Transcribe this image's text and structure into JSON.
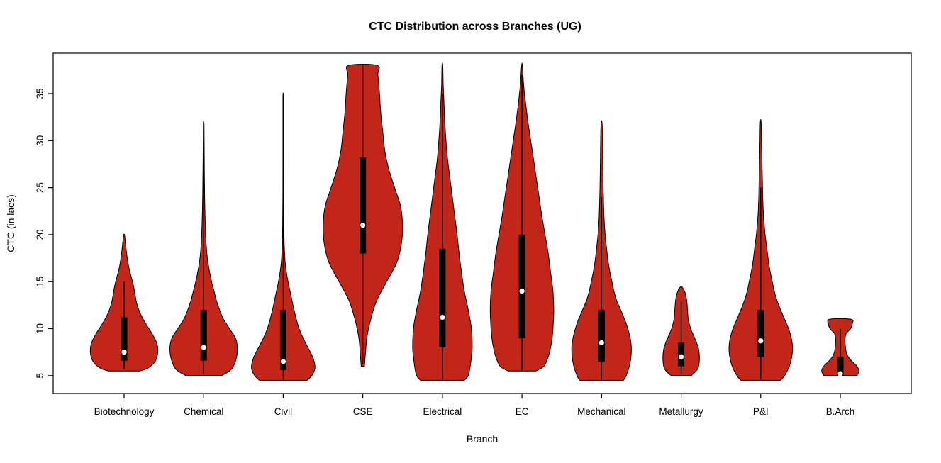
{
  "chart_data": {
    "type": "violin",
    "title": "CTC Distribution across Branches (UG)",
    "xlabel": "Branch",
    "ylabel": "CTC (in lacs)",
    "ylim": [
      3.1,
      39.3
    ],
    "yticks": [
      5,
      10,
      15,
      20,
      25,
      30,
      35
    ],
    "grid": false,
    "legend": "none",
    "violin_fill_color": "#C22618",
    "violin_outline_color": "#000000",
    "box_color": "#000000",
    "median_dot_color": "#ffffff",
    "categories": [
      "Biotechnology",
      "Chemical",
      "Civil",
      "CSE",
      "Electrical",
      "EC",
      "Mechanical",
      "Metallurgy",
      "P&I",
      "B.Arch"
    ],
    "series": [
      {
        "name": "Biotechnology",
        "min": 5.5,
        "max": 20,
        "q1": 6.6,
        "q3": 11.2,
        "median": 7.5,
        "whisker": [
          5.7,
          15
        ],
        "profile": [
          [
            5.5,
            0.4
          ],
          [
            5.8,
            0.6
          ],
          [
            6.5,
            0.78
          ],
          [
            7.5,
            0.85
          ],
          [
            8.5,
            0.82
          ],
          [
            9.5,
            0.7
          ],
          [
            10.5,
            0.55
          ],
          [
            11.5,
            0.42
          ],
          [
            12.5,
            0.33
          ],
          [
            13.5,
            0.28
          ],
          [
            14.5,
            0.24
          ],
          [
            15.5,
            0.18
          ],
          [
            16.5,
            0.12
          ],
          [
            17.5,
            0.08
          ],
          [
            18.5,
            0.05
          ],
          [
            19.5,
            0.025
          ],
          [
            20,
            0.01
          ]
        ]
      },
      {
        "name": "Chemical",
        "min": 5,
        "max": 32,
        "q1": 6.6,
        "q3": 12,
        "median": 8,
        "whisker": [
          5.2,
          29
        ],
        "profile": [
          [
            5,
            0.45
          ],
          [
            5.5,
            0.65
          ],
          [
            6,
            0.75
          ],
          [
            7,
            0.83
          ],
          [
            8,
            0.85
          ],
          [
            9,
            0.8
          ],
          [
            10,
            0.65
          ],
          [
            11,
            0.5
          ],
          [
            12,
            0.4
          ],
          [
            13,
            0.32
          ],
          [
            14,
            0.26
          ],
          [
            15,
            0.2
          ],
          [
            16,
            0.15
          ],
          [
            17,
            0.11
          ],
          [
            18,
            0.08
          ],
          [
            20,
            0.05
          ],
          [
            22,
            0.035
          ],
          [
            24,
            0.025
          ],
          [
            26,
            0.02
          ],
          [
            28,
            0.015
          ],
          [
            30,
            0.012
          ],
          [
            31.5,
            0.01
          ],
          [
            32,
            0.005
          ]
        ]
      },
      {
        "name": "Civil",
        "min": 4.5,
        "max": 35,
        "q1": 5.6,
        "q3": 12,
        "median": 6.5,
        "whisker": [
          4.6,
          29
        ],
        "profile": [
          [
            4.5,
            0.6
          ],
          [
            5,
            0.72
          ],
          [
            5.5,
            0.78
          ],
          [
            6,
            0.8
          ],
          [
            7,
            0.74
          ],
          [
            8,
            0.62
          ],
          [
            9,
            0.5
          ],
          [
            10,
            0.4
          ],
          [
            11,
            0.33
          ],
          [
            12,
            0.27
          ],
          [
            13,
            0.22
          ],
          [
            14,
            0.17
          ],
          [
            15,
            0.12
          ],
          [
            16,
            0.08
          ],
          [
            17,
            0.05
          ],
          [
            18,
            0.035
          ],
          [
            19,
            0.025
          ],
          [
            21,
            0.015
          ],
          [
            24,
            0.01
          ],
          [
            28,
            0.008
          ],
          [
            32,
            0.008
          ],
          [
            34.5,
            0.008
          ],
          [
            35,
            0.004
          ]
        ]
      },
      {
        "name": "CSE",
        "min": 6,
        "max": 38,
        "q1": 18,
        "q3": 28.2,
        "median": 21,
        "whisker": [
          6.2,
          38
        ],
        "profile": [
          [
            6,
            0.04
          ],
          [
            7,
            0.06
          ],
          [
            9,
            0.1
          ],
          [
            11,
            0.2
          ],
          [
            13,
            0.35
          ],
          [
            15,
            0.6
          ],
          [
            17,
            0.85
          ],
          [
            19,
            0.97
          ],
          [
            21,
            1.0
          ],
          [
            23,
            0.95
          ],
          [
            25,
            0.8
          ],
          [
            27,
            0.65
          ],
          [
            29,
            0.55
          ],
          [
            31,
            0.5
          ],
          [
            33,
            0.45
          ],
          [
            35,
            0.42
          ],
          [
            37,
            0.38
          ],
          [
            38,
            0.36
          ]
        ]
      },
      {
        "name": "Electrical",
        "min": 4.5,
        "max": 38,
        "q1": 8,
        "q3": 18.5,
        "median": 11.2,
        "whisker": [
          4.6,
          35
        ],
        "profile": [
          [
            4.5,
            0.55
          ],
          [
            5,
            0.65
          ],
          [
            6,
            0.7
          ],
          [
            7,
            0.73
          ],
          [
            8,
            0.75
          ],
          [
            10,
            0.73
          ],
          [
            12,
            0.65
          ],
          [
            14,
            0.55
          ],
          [
            16,
            0.48
          ],
          [
            18,
            0.42
          ],
          [
            20,
            0.37
          ],
          [
            22,
            0.31
          ],
          [
            24,
            0.25
          ],
          [
            26,
            0.19
          ],
          [
            28,
            0.13
          ],
          [
            30,
            0.09
          ],
          [
            32,
            0.06
          ],
          [
            34,
            0.04
          ],
          [
            36,
            0.02
          ],
          [
            38,
            0.01
          ]
        ]
      },
      {
        "name": "EC",
        "min": 5.5,
        "max": 38,
        "q1": 9,
        "q3": 20,
        "median": 14,
        "whisker": [
          5.6,
          37
        ],
        "profile": [
          [
            5.5,
            0.35
          ],
          [
            6,
            0.55
          ],
          [
            7,
            0.66
          ],
          [
            8,
            0.72
          ],
          [
            9,
            0.76
          ],
          [
            10,
            0.78
          ],
          [
            12,
            0.8
          ],
          [
            14,
            0.78
          ],
          [
            16,
            0.72
          ],
          [
            18,
            0.66
          ],
          [
            20,
            0.58
          ],
          [
            22,
            0.5
          ],
          [
            24,
            0.43
          ],
          [
            26,
            0.36
          ],
          [
            28,
            0.29
          ],
          [
            30,
            0.22
          ],
          [
            32,
            0.15
          ],
          [
            34,
            0.09
          ],
          [
            36,
            0.04
          ],
          [
            38,
            0.01
          ]
        ]
      },
      {
        "name": "Mechanical",
        "min": 4.5,
        "max": 32,
        "q1": 6.5,
        "q3": 12,
        "median": 8.5,
        "whisker": [
          4.6,
          24
        ],
        "profile": [
          [
            4.5,
            0.55
          ],
          [
            5,
            0.62
          ],
          [
            6,
            0.7
          ],
          [
            7,
            0.74
          ],
          [
            8,
            0.75
          ],
          [
            9,
            0.72
          ],
          [
            10,
            0.66
          ],
          [
            11,
            0.58
          ],
          [
            12,
            0.48
          ],
          [
            13,
            0.38
          ],
          [
            14,
            0.31
          ],
          [
            15,
            0.26
          ],
          [
            16,
            0.21
          ],
          [
            17,
            0.17
          ],
          [
            18,
            0.14
          ],
          [
            20,
            0.09
          ],
          [
            22,
            0.06
          ],
          [
            25,
            0.04
          ],
          [
            28,
            0.03
          ],
          [
            31,
            0.02
          ],
          [
            32,
            0.01
          ]
        ]
      },
      {
        "name": "Metallurgy",
        "min": 5,
        "max": 14.4,
        "q1": 6,
        "q3": 8.5,
        "median": 7,
        "whisker": [
          5.2,
          13
        ],
        "profile": [
          [
            5,
            0.25
          ],
          [
            5.5,
            0.38
          ],
          [
            6,
            0.44
          ],
          [
            7,
            0.46
          ],
          [
            8,
            0.43
          ],
          [
            9,
            0.34
          ],
          [
            10,
            0.24
          ],
          [
            11,
            0.18
          ],
          [
            12,
            0.16
          ],
          [
            13,
            0.14
          ],
          [
            13.8,
            0.1
          ],
          [
            14.4,
            0.03
          ]
        ]
      },
      {
        "name": "P&I",
        "min": 4.5,
        "max": 32,
        "q1": 7,
        "q3": 12,
        "median": 8.7,
        "whisker": [
          4.6,
          25
        ],
        "profile": [
          [
            4.5,
            0.5
          ],
          [
            5,
            0.6
          ],
          [
            6,
            0.72
          ],
          [
            7,
            0.78
          ],
          [
            8,
            0.8
          ],
          [
            9,
            0.77
          ],
          [
            10,
            0.7
          ],
          [
            11,
            0.6
          ],
          [
            12,
            0.5
          ],
          [
            13,
            0.41
          ],
          [
            14,
            0.34
          ],
          [
            15,
            0.29
          ],
          [
            16,
            0.24
          ],
          [
            17,
            0.2
          ],
          [
            18,
            0.17
          ],
          [
            19,
            0.14
          ],
          [
            20,
            0.11
          ],
          [
            22,
            0.07
          ],
          [
            24,
            0.05
          ],
          [
            26,
            0.04
          ],
          [
            28,
            0.03
          ],
          [
            30,
            0.02
          ],
          [
            32,
            0.01
          ]
        ]
      },
      {
        "name": "B.Arch",
        "min": 5,
        "max": 11,
        "q1": 5,
        "q3": 7,
        "median": 5.2,
        "whisker": [
          5,
          10
        ],
        "profile": [
          [
            5,
            0.42
          ],
          [
            5.5,
            0.47
          ],
          [
            6,
            0.42
          ],
          [
            6.5,
            0.3
          ],
          [
            7,
            0.2
          ],
          [
            7.5,
            0.15
          ],
          [
            8,
            0.13
          ],
          [
            8.5,
            0.12
          ],
          [
            9,
            0.12
          ],
          [
            9.5,
            0.15
          ],
          [
            10,
            0.26
          ],
          [
            10.5,
            0.3
          ],
          [
            11,
            0.27
          ]
        ]
      }
    ]
  }
}
